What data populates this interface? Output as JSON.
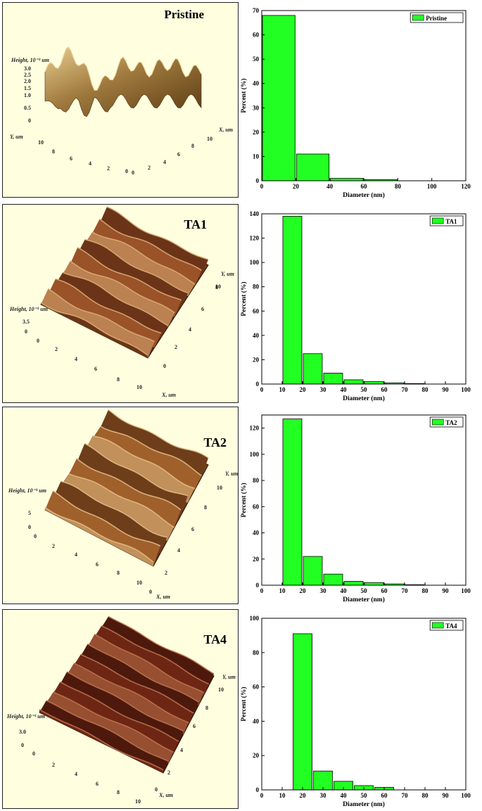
{
  "afm_panels": [
    {
      "title": "Pristine",
      "height_label": "Height, 10⁻³ um",
      "height_ticks": [
        "3.0",
        "2.5",
        "2.0",
        "1.5",
        "1.0",
        "0.5",
        "0"
      ],
      "axis1_name": "Y, um",
      "axis1_ticks": [
        "10",
        "8",
        "6",
        "4",
        "2",
        "0"
      ],
      "axis2_name": "X, um",
      "axis2_ticks": [
        "0",
        "2",
        "4",
        "6",
        "8",
        "10"
      ],
      "surface_colors": [
        "#5a3a12",
        "#a07a3e",
        "#e8cc90"
      ]
    },
    {
      "title": "TA1",
      "height_label": "Height, 10⁻³ um",
      "height_ticks": [
        "3.5",
        "0"
      ],
      "axis1_name": "X, um",
      "axis1_ticks": [
        "0",
        "2",
        "4",
        "6",
        "8",
        "10"
      ],
      "axis2_name": "Y, um",
      "axis2_ticks": [
        "0",
        "2",
        "4",
        "6",
        "8",
        "10"
      ],
      "surface_colors": [
        "#3c1608",
        "#9a5228",
        "#dcb078"
      ]
    },
    {
      "title": "TA2",
      "height_label": "Height, 10⁻³ um",
      "height_ticks": [
        "5",
        "0"
      ],
      "axis1_name": "X, um",
      "axis1_ticks": [
        "0",
        "2",
        "4",
        "6",
        "8",
        "10"
      ],
      "axis2_name": "Y, um",
      "axis2_ticks": [
        "0",
        "2",
        "4",
        "6",
        "8",
        "10"
      ],
      "surface_colors": [
        "#3c1a08",
        "#a0602c",
        "#e4c088"
      ]
    },
    {
      "title": "TA4",
      "height_label": "Height, 10⁻³ um",
      "height_ticks": [
        "3.0",
        "0"
      ],
      "axis1_name": "X, um",
      "axis1_ticks": [
        "0",
        "2",
        "4",
        "6",
        "8",
        "10"
      ],
      "axis2_name": "Y, um",
      "axis2_ticks": [
        "0",
        "2",
        "4",
        "6",
        "8",
        "10"
      ],
      "surface_colors": [
        "#2c0c06",
        "#6e2614",
        "#c07850"
      ]
    }
  ],
  "chart_data": [
    {
      "type": "bar",
      "xlabel": "Diameter (nm)",
      "ylabel": "Percent (%)",
      "xlim": [
        0,
        120
      ],
      "ylim": [
        0,
        70
      ],
      "xticks": [
        0,
        20,
        40,
        60,
        80,
        100,
        120
      ],
      "yticks": [
        0,
        10,
        20,
        30,
        40,
        50,
        60,
        70
      ],
      "legend_position": "top-right",
      "bar_color": "#22ff22",
      "series": [
        {
          "name": "Pristine",
          "bars": [
            [
              0,
              20,
              68
            ],
            [
              20,
              40,
              11
            ],
            [
              40,
              60,
              1
            ],
            [
              60,
              80,
              0.5
            ]
          ]
        }
      ]
    },
    {
      "type": "bar",
      "xlabel": "Diameter (nm)",
      "ylabel": "Percent (%)",
      "xlim": [
        0,
        100
      ],
      "ylim": [
        0,
        140
      ],
      "xticks": [
        0,
        10,
        20,
        30,
        40,
        50,
        60,
        70,
        80,
        90,
        100
      ],
      "yticks": [
        0,
        20,
        40,
        60,
        80,
        100,
        120,
        140
      ],
      "legend_position": "top-right",
      "bar_color": "#22ff22",
      "series": [
        {
          "name": "TA1",
          "bars": [
            [
              10,
              20,
              138
            ],
            [
              20,
              30,
              25
            ],
            [
              30,
              40,
              9
            ],
            [
              40,
              50,
              3.5
            ],
            [
              50,
              60,
              2
            ],
            [
              60,
              70,
              1
            ],
            [
              70,
              80,
              0.4
            ]
          ]
        }
      ]
    },
    {
      "type": "bar",
      "xlabel": "Diameter (nm)",
      "ylabel": "Percent (%)",
      "xlim": [
        0,
        100
      ],
      "ylim": [
        0,
        130
      ],
      "xticks": [
        0,
        10,
        20,
        30,
        40,
        50,
        60,
        70,
        80,
        90,
        100
      ],
      "yticks": [
        0,
        20,
        40,
        60,
        80,
        100,
        120
      ],
      "legend_position": "top-right",
      "bar_color": "#22ff22",
      "series": [
        {
          "name": "TA2",
          "bars": [
            [
              10,
              20,
              127
            ],
            [
              20,
              30,
              22
            ],
            [
              30,
              40,
              8.5
            ],
            [
              40,
              50,
              3
            ],
            [
              50,
              60,
              2
            ],
            [
              60,
              70,
              1
            ],
            [
              70,
              80,
              0.4
            ]
          ]
        }
      ]
    },
    {
      "type": "bar",
      "xlabel": "Diameter (nm)",
      "ylabel": "Percent (%)",
      "xlim": [
        0,
        100
      ],
      "ylim": [
        0,
        100
      ],
      "xticks": [
        0,
        10,
        20,
        30,
        40,
        50,
        60,
        70,
        80,
        90,
        100
      ],
      "yticks": [
        0,
        20,
        40,
        60,
        80,
        100
      ],
      "legend_position": "top-right",
      "bar_color": "#22ff22",
      "series": [
        {
          "name": "TA4",
          "bars": [
            [
              15,
              25,
              91
            ],
            [
              25,
              35,
              11
            ],
            [
              35,
              45,
              5
            ],
            [
              45,
              55,
              2.5
            ],
            [
              55,
              65,
              1.5
            ]
          ]
        }
      ]
    }
  ]
}
